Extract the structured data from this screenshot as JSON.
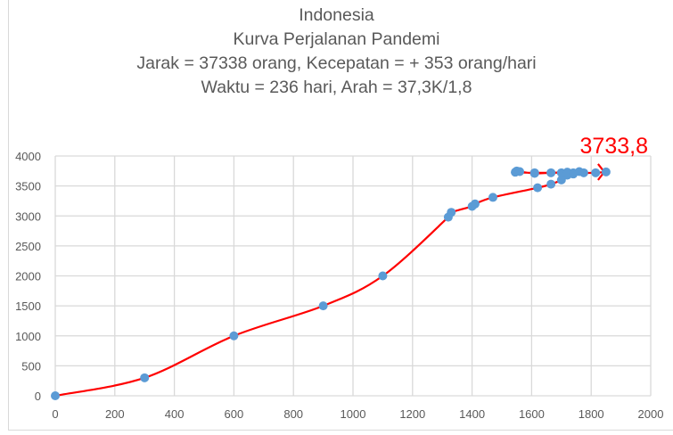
{
  "chart_data": {
    "type": "scatter",
    "title_lines": [
      "Indonesia",
      "Kurva Perjalanan Pandemi",
      "Jarak = 37338 orang, Kecepatan = + 353 orang/hari",
      "Waktu = 236 hari, Arah = 37,3K/1,8"
    ],
    "annotation": "3733,8",
    "xlim": [
      0,
      2000
    ],
    "ylim": [
      0,
      4000
    ],
    "x_ticks": [
      "0",
      "200",
      "400",
      "600",
      "800",
      "1000",
      "1200",
      "1400",
      "1600",
      "1800",
      "2000"
    ],
    "y_ticks": [
      "0",
      "500",
      "1000",
      "1500",
      "2000",
      "2500",
      "3000",
      "3500",
      "4000"
    ],
    "grid": true,
    "series": [
      {
        "name": "Indonesia",
        "marker_color": "#5b9bd5",
        "line_color": "#ff0000",
        "points": [
          [
            0,
            0
          ],
          [
            300,
            300
          ],
          [
            600,
            1000
          ],
          [
            900,
            1500
          ],
          [
            1100,
            2000
          ],
          [
            1320,
            2980
          ],
          [
            1330,
            3060
          ],
          [
            1400,
            3160
          ],
          [
            1410,
            3200
          ],
          [
            1470,
            3310
          ],
          [
            1620,
            3470
          ],
          [
            1665,
            3530
          ],
          [
            1700,
            3600
          ],
          [
            1720,
            3680
          ],
          [
            1740,
            3700
          ],
          [
            1700,
            3720
          ],
          [
            1610,
            3720
          ],
          [
            1545,
            3730
          ],
          [
            1550,
            3750
          ],
          [
            1560,
            3740
          ],
          [
            1610,
            3710
          ],
          [
            1665,
            3720
          ],
          [
            1720,
            3730
          ],
          [
            1740,
            3720
          ],
          [
            1760,
            3740
          ],
          [
            1775,
            3720
          ],
          [
            1815,
            3720
          ],
          [
            1850,
            3734
          ]
        ]
      }
    ]
  }
}
